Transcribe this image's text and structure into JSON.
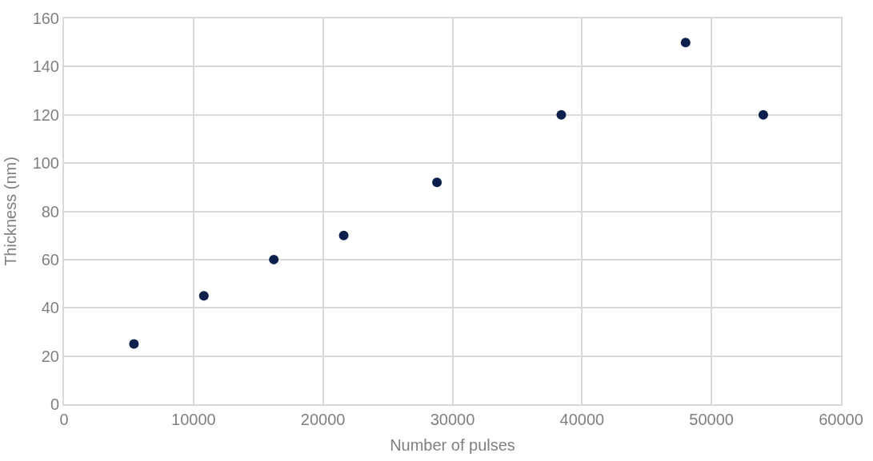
{
  "chart_data": {
    "type": "scatter",
    "xlabel": "Number of pulses",
    "ylabel": "Thickness (nm)",
    "x": [
      5400,
      10800,
      16200,
      21600,
      28800,
      38400,
      48000,
      54000
    ],
    "series": [
      {
        "color": "#0b1f4d",
        "values": [
          25,
          45,
          60,
          70,
          92,
          120,
          150,
          120
        ]
      }
    ],
    "xlim": [
      0,
      60000
    ],
    "xticks": [
      0,
      10000,
      20000,
      30000,
      40000,
      50000,
      60000
    ],
    "ylim": [
      0,
      160
    ],
    "yticks": [
      0,
      20,
      40,
      60,
      80,
      100,
      120,
      140,
      160
    ],
    "grid": true,
    "marker": "circle"
  }
}
